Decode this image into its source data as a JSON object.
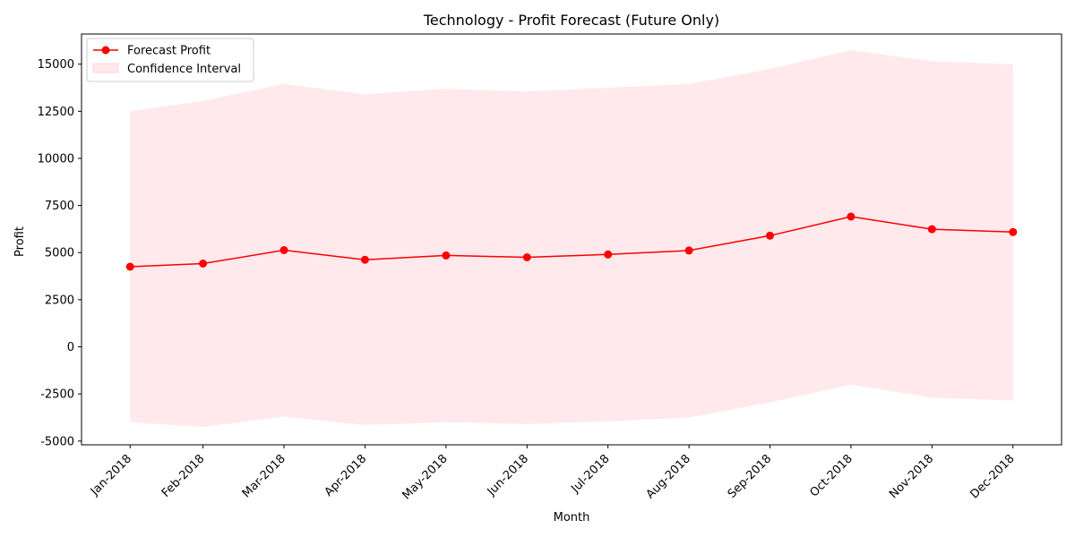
{
  "chart_data": {
    "type": "line",
    "title": "Technology - Profit Forecast (Future Only)",
    "xlabel": "Month",
    "ylabel": "Profit",
    "categories": [
      "Jan-2018",
      "Feb-2018",
      "Mar-2018",
      "Apr-2018",
      "May-2018",
      "Jun-2018",
      "Jul-2018",
      "Aug-2018",
      "Sep-2018",
      "Oct-2018",
      "Nov-2018",
      "Dec-2018"
    ],
    "x_positions": [
      1,
      1.9,
      2.9,
      3.9,
      4.9,
      5.9,
      6.9,
      7.9,
      8.9,
      9.9,
      10.9,
      11.9
    ],
    "series": [
      {
        "name": "Forecast Profit",
        "color": "#ff0000",
        "values": [
          4250,
          4420,
          5130,
          4620,
          4850,
          4750,
          4900,
          5110,
          5900,
          6910,
          6240,
          6090
        ]
      }
    ],
    "confidence_interval": {
      "name": "Confidence Interval",
      "color": "#ffc0cb",
      "upper": [
        12500,
        13050,
        13950,
        13400,
        13700,
        13550,
        13750,
        13950,
        14750,
        15750,
        15150,
        15000
      ],
      "lower": [
        -4000,
        -4250,
        -3700,
        -4150,
        -4000,
        -4100,
        -3950,
        -3750,
        -2950,
        -2000,
        -2700,
        -2850
      ]
    },
    "yticks": [
      -5000,
      -2500,
      0,
      2500,
      5000,
      7500,
      10000,
      12500,
      15000
    ],
    "ylim": [
      -5200,
      16600
    ],
    "grid": false,
    "legend_position": "top-left"
  }
}
